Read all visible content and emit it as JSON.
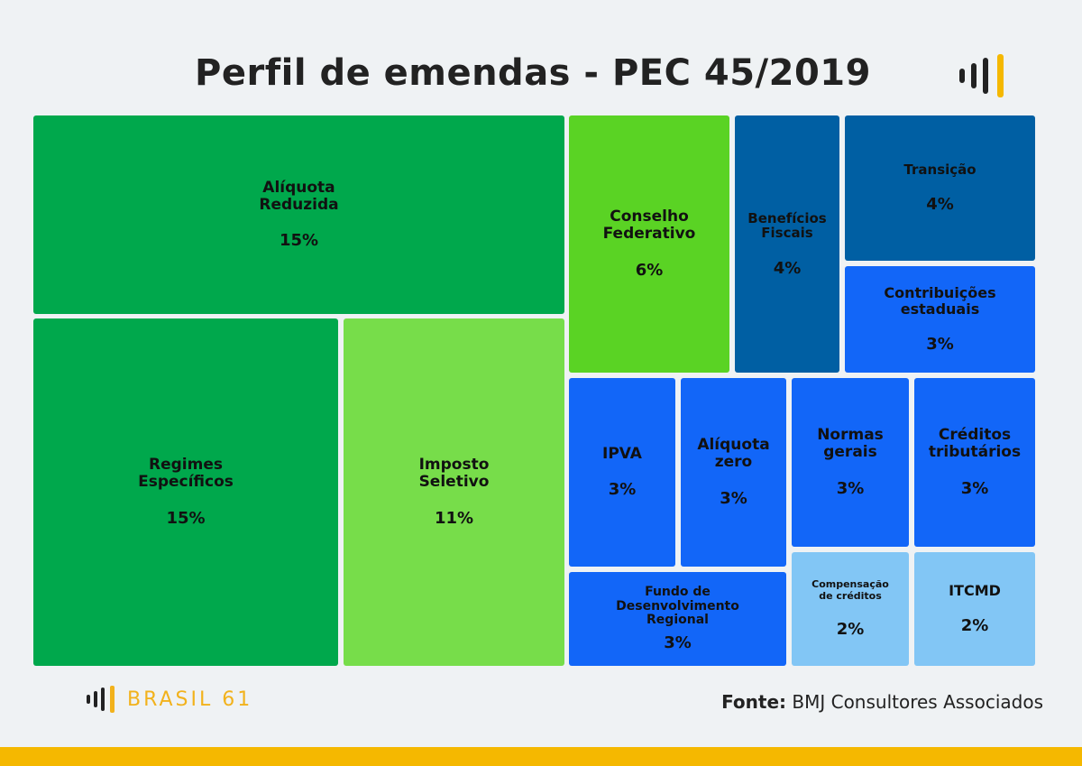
{
  "colors": {
    "dark_green": "#00a84c",
    "light_green": "#77dd4a",
    "lime_green": "#5ad324",
    "dark_blue": "#005fa3",
    "blue": "#1266f8",
    "light_blue": "#82c6f5",
    "accent_yellow": "#f5b800"
  },
  "chart_data": {
    "type": "treemap",
    "title": "Perfil de emendas - PEC 45/2019",
    "items": [
      {
        "label": "Alíquota\nReduzida",
        "value": 15,
        "display": "15%",
        "color": "dark_green"
      },
      {
        "label": "Regimes\nEspecíficos",
        "value": 15,
        "display": "15%",
        "color": "dark_green"
      },
      {
        "label": "Imposto\nSeletivo",
        "value": 11,
        "display": "11%",
        "color": "light_green"
      },
      {
        "label": "Conselho\nFederativo",
        "value": 6,
        "display": "6%",
        "color": "lime_green"
      },
      {
        "label": "Benefícios\nFiscais",
        "value": 4,
        "display": "4%",
        "color": "dark_blue"
      },
      {
        "label": "Transição",
        "value": 4,
        "display": "4%",
        "color": "dark_blue"
      },
      {
        "label": "Contribuições\nestaduais",
        "value": 3,
        "display": "3%",
        "color": "blue"
      },
      {
        "label": "IPVA",
        "value": 3,
        "display": "3%",
        "color": "blue"
      },
      {
        "label": "Alíquota\nzero",
        "value": 3,
        "display": "3%",
        "color": "blue"
      },
      {
        "label": "Normas\ngerais",
        "value": 3,
        "display": "3%",
        "color": "blue"
      },
      {
        "label": "Créditos\ntributários",
        "value": 3,
        "display": "3%",
        "color": "blue"
      },
      {
        "label": "Fundo de\nDesenvolvimento\nRegional",
        "value": 3,
        "display": "3%",
        "color": "blue"
      },
      {
        "label": "Compensação\nde créditos",
        "value": 2,
        "display": "2%",
        "color": "light_blue"
      },
      {
        "label": "ITCMD",
        "value": 2,
        "display": "2%",
        "color": "light_blue"
      }
    ]
  },
  "footer": {
    "brand": "BRASIL 61",
    "source_label": "Fonte:",
    "source_value": " BMJ Consultores Associados"
  }
}
